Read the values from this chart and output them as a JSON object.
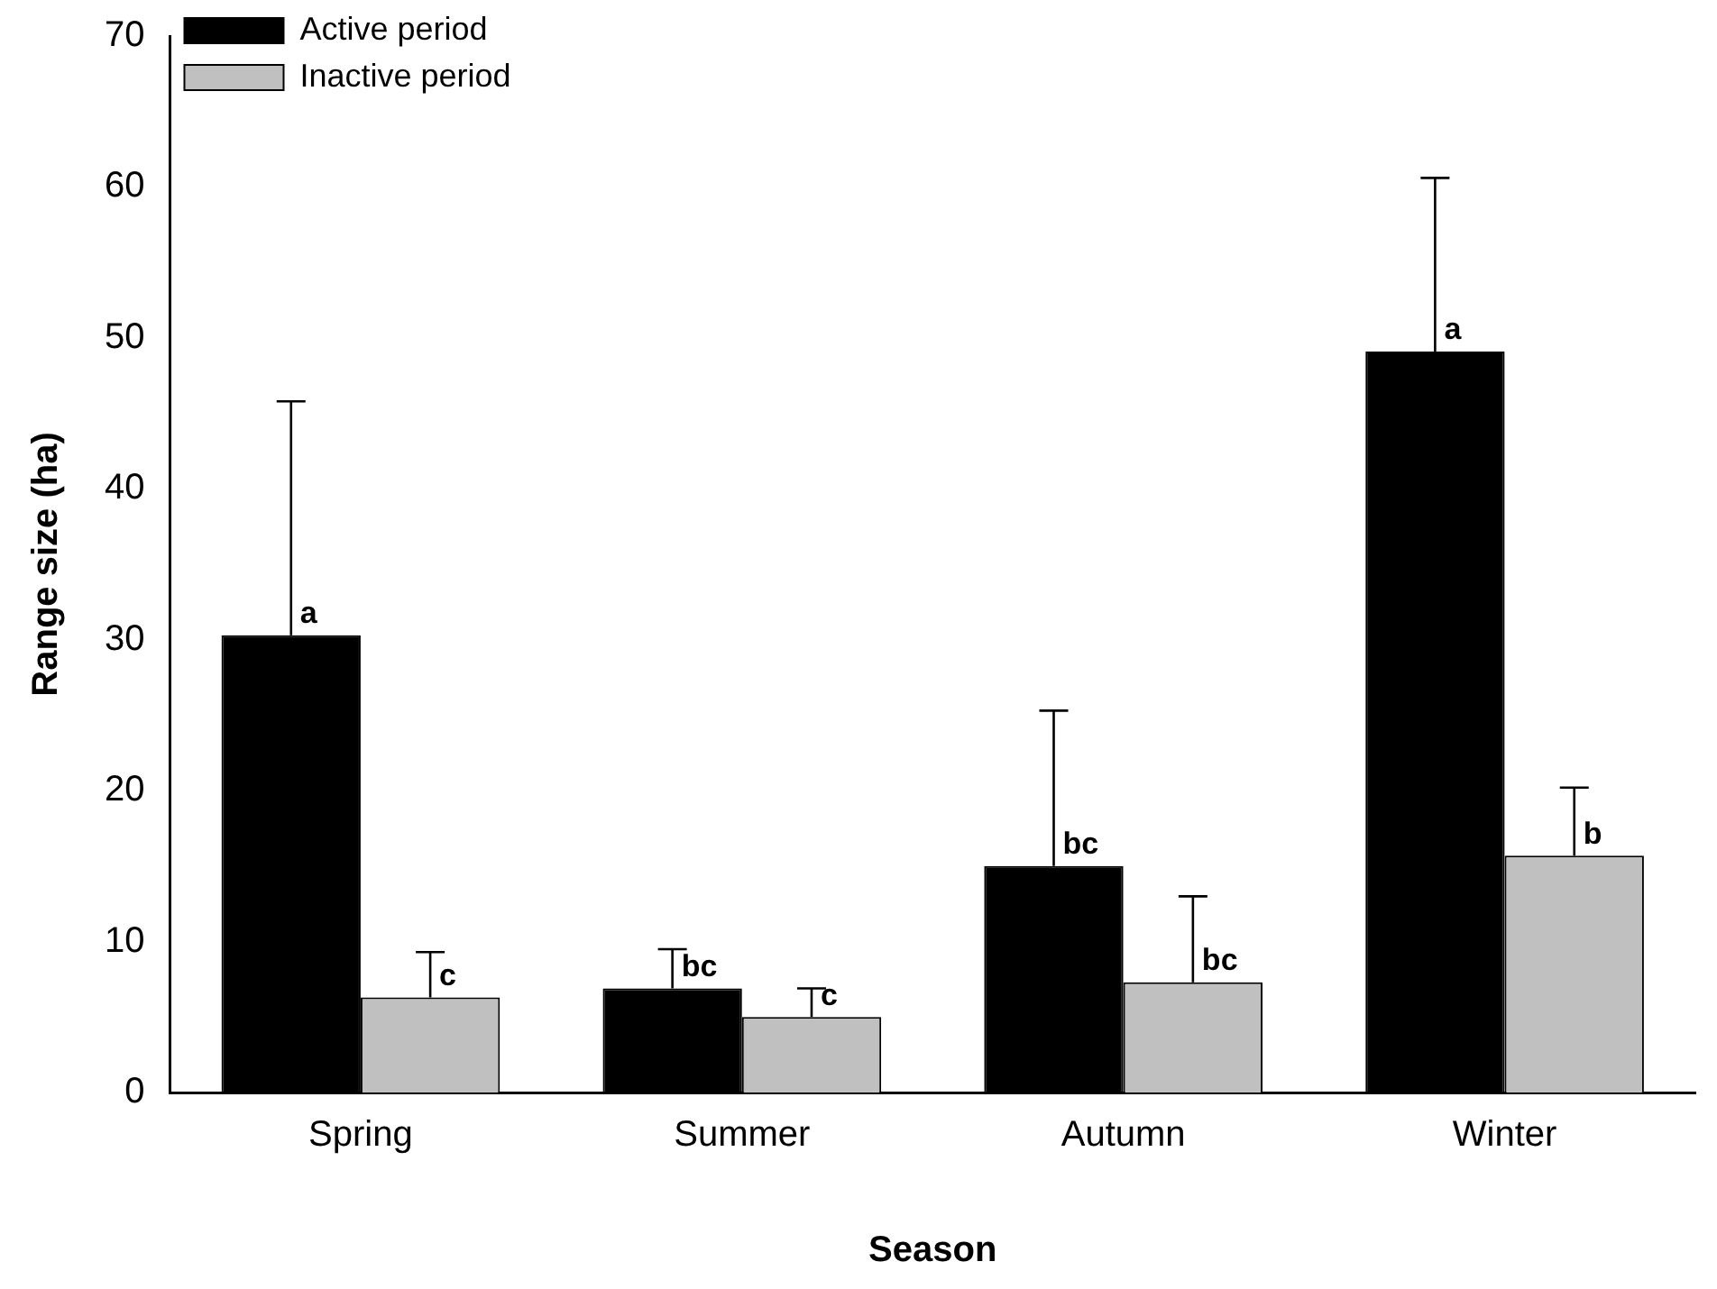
{
  "chart_data": {
    "type": "bar",
    "xlabel": "Season",
    "ylabel": "Range size (ha)",
    "categories": [
      "Spring",
      "Summer",
      "Autumn",
      "Winter"
    ],
    "series": [
      {
        "name": "Active period",
        "color": "#000000",
        "values": [
          30.3,
          6.9,
          15.0,
          49.1
        ],
        "errors": [
          [
            30.3,
            45.8
          ],
          [
            6.9,
            9.5
          ],
          [
            15.0,
            25.3
          ],
          [
            49.1,
            60.6
          ]
        ]
      },
      {
        "name": "Inactive period",
        "color": "#c0c0c0",
        "values": [
          6.3,
          5.0,
          7.3,
          15.7
        ],
        "errors": [
          [
            6.3,
            9.3
          ],
          [
            5.0,
            6.9
          ],
          [
            7.3,
            13.0
          ],
          [
            15.7,
            20.2
          ]
        ]
      }
    ],
    "ylim": [
      0,
      70
    ],
    "yticks": [
      0,
      10,
      20,
      30,
      40,
      50,
      60,
      70
    ],
    "grid": false,
    "legend": "top left",
    "annotations": [
      {
        "text": "a",
        "x": "Spring",
        "y": 30.3
      },
      {
        "text": "c",
        "x": "Spring",
        "y": 6.3
      },
      {
        "text": "bc",
        "x": "Summer",
        "y": 6.9
      },
      {
        "text": "c",
        "x": "Summer",
        "y": 5.0
      },
      {
        "text": "bc",
        "x": "Autumn",
        "y": 15.0
      },
      {
        "text": "bc",
        "x": "Autumn",
        "y": 7.3
      },
      {
        "text": "a",
        "x": "Winter",
        "y": 49.1
      },
      {
        "text": "b",
        "x": "Winter",
        "y": 15.7
      }
    ]
  }
}
